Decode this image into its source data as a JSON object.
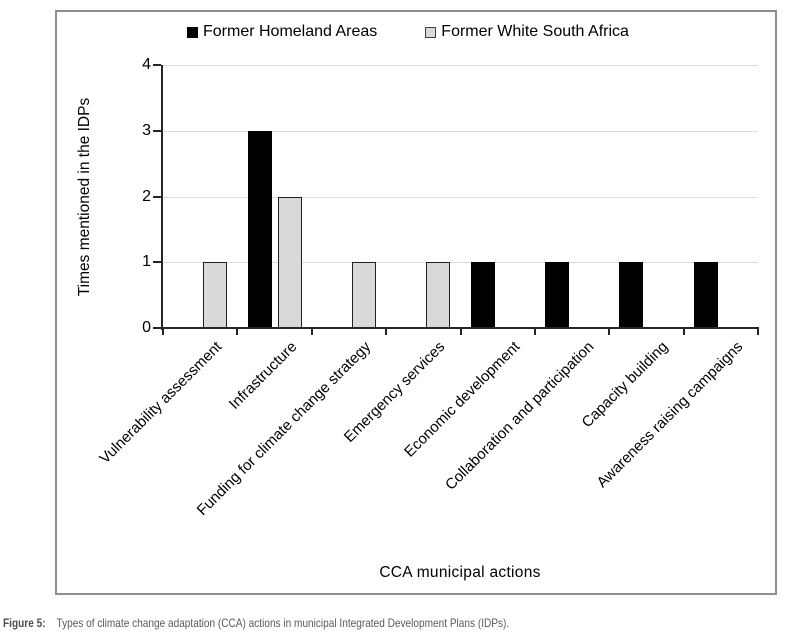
{
  "figure": {
    "label": "Figure 5:",
    "caption": "Types of climate change adaptation (CCA) actions in municipal Integrated Development Plans (IDPs)."
  },
  "chart_data": {
    "type": "bar",
    "title": "",
    "xlabel": "CCA municipal actions",
    "ylabel": "Times mentioned in the IDPs",
    "ylim": [
      0,
      4
    ],
    "yticks": [
      0,
      1,
      2,
      3,
      4
    ],
    "grid": true,
    "legend_position": "top-center",
    "categories": [
      "Vulnerability assessment",
      "Infrastructure",
      "Funding for climate change strategy",
      "Emergency services",
      "Economic development",
      "Collaboration and participation",
      "Capacity building",
      "Awareness raising campaigns"
    ],
    "series": [
      {
        "name": "Former Homeland Areas",
        "color": "#000000",
        "values": [
          0,
          3,
          0,
          0,
          1,
          1,
          1,
          1
        ]
      },
      {
        "name": "Former White South Africa",
        "color": "#d9d9d9",
        "values": [
          1,
          2,
          1,
          1,
          0,
          0,
          0,
          0
        ]
      }
    ],
    "colors": {
      "gridline": "#dcdcdc",
      "axis": "#262626",
      "frame_border": "#8f8f8f",
      "gray_bar_border": "#212121",
      "caption_text": "#595a5c",
      "background": "#ffffff"
    }
  }
}
